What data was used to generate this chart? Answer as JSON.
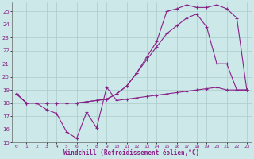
{
  "title": "",
  "xlabel": "Windchill (Refroidissement éolien,°C)",
  "ylabel": "",
  "bg_color": "#cce8e8",
  "grid_color": "#aacccc",
  "line_color": "#882288",
  "xlim": [
    -0.5,
    23.5
  ],
  "ylim": [
    15,
    25.7
  ],
  "yticks": [
    15,
    16,
    17,
    18,
    19,
    20,
    21,
    22,
    23,
    24,
    25
  ],
  "xticks": [
    0,
    1,
    2,
    3,
    4,
    5,
    6,
    7,
    8,
    9,
    10,
    11,
    12,
    13,
    14,
    15,
    16,
    17,
    18,
    19,
    20,
    21,
    22,
    23
  ],
  "line1_x": [
    0,
    1,
    2,
    3,
    4,
    5,
    6,
    7,
    8,
    9,
    10,
    11,
    12,
    13,
    14,
    15,
    16,
    17,
    18,
    19,
    20,
    21,
    22,
    23
  ],
  "line1_y": [
    18.7,
    18.0,
    18.0,
    17.5,
    17.2,
    15.8,
    15.3,
    17.3,
    16.1,
    19.2,
    18.2,
    18.3,
    18.4,
    18.5,
    18.6,
    18.7,
    18.8,
    18.9,
    19.0,
    19.1,
    19.2,
    19.0,
    19.0,
    19.0
  ],
  "line2_x": [
    0,
    1,
    2,
    3,
    4,
    5,
    6,
    7,
    8,
    9,
    10,
    11,
    12,
    13,
    14,
    15,
    16,
    17,
    18,
    19,
    20,
    21,
    22,
    23
  ],
  "line2_y": [
    18.7,
    18.0,
    18.0,
    18.0,
    18.0,
    18.0,
    18.0,
    18.1,
    18.2,
    18.3,
    18.7,
    19.3,
    20.3,
    21.3,
    22.3,
    23.3,
    23.9,
    24.5,
    24.8,
    23.8,
    21.0,
    21.0,
    19.0,
    19.0
  ],
  "line3_x": [
    0,
    1,
    2,
    3,
    4,
    5,
    6,
    7,
    8,
    9,
    10,
    11,
    12,
    13,
    14,
    15,
    16,
    17,
    18,
    19,
    20,
    21,
    22,
    23
  ],
  "line3_y": [
    18.7,
    18.0,
    18.0,
    18.0,
    18.0,
    18.0,
    18.0,
    18.1,
    18.2,
    18.3,
    18.7,
    19.3,
    20.3,
    21.5,
    22.7,
    25.0,
    25.2,
    25.5,
    25.3,
    25.3,
    25.5,
    25.2,
    24.5,
    19.0
  ]
}
